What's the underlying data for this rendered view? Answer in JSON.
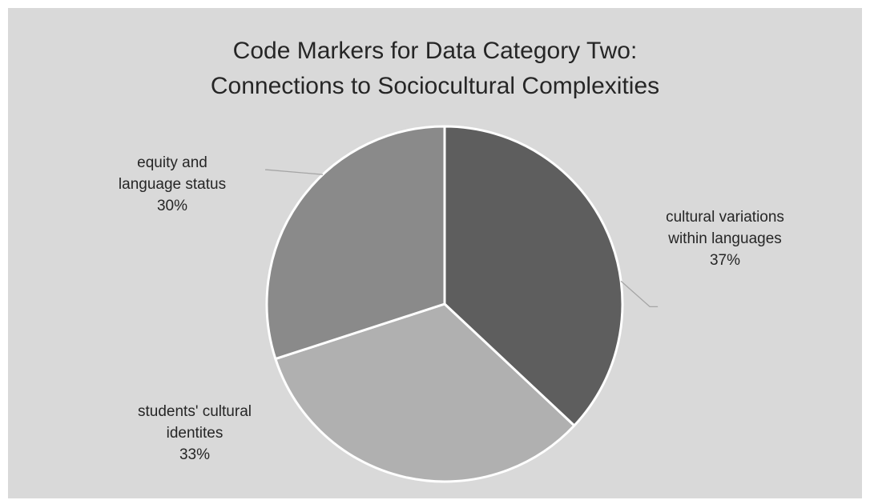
{
  "chart_data": {
    "type": "pie",
    "title": [
      "Code Markers for Data Category Two:",
      "Connections to Sociocultural Complexities"
    ],
    "slices": [
      {
        "name_lines": [
          "cultural variations",
          "within languages"
        ],
        "value": 37,
        "label": "37%",
        "color": "#5e5e5e"
      },
      {
        "name_lines": [
          "students' cultural",
          "identites"
        ],
        "value": 33,
        "label": "33%",
        "color": "#b0b0b0"
      },
      {
        "name_lines": [
          "equity and",
          "language status"
        ],
        "value": 30,
        "label": "30%",
        "color": "#8a8a8a"
      }
    ],
    "legend": "none",
    "slice_border_color": "#ffffff",
    "background_color": "#d9d9d9"
  }
}
